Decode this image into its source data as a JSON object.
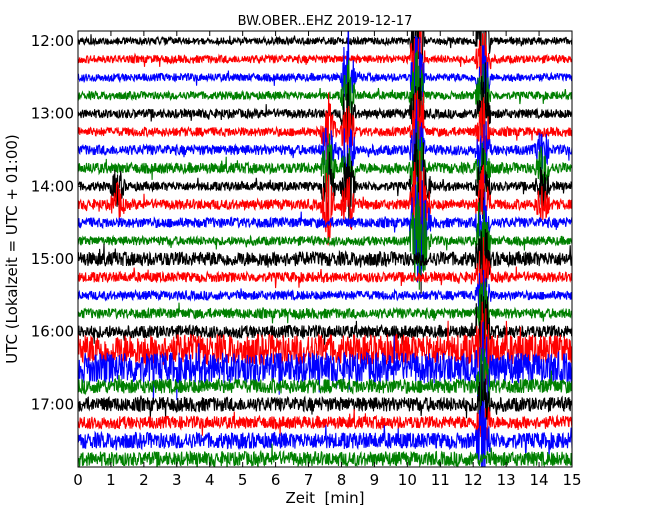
{
  "chart_data": {
    "type": "line",
    "title": "BW.OBER..EHZ 2019-12-17",
    "xlabel": "Zeit  [min]",
    "ylabel": "UTC (Lokalzeit = UTC + 01:00)",
    "xlim": [
      0,
      15
    ],
    "x_ticks": [
      "0",
      "1",
      "2",
      "3",
      "4",
      "5",
      "6",
      "7",
      "8",
      "9",
      "10",
      "11",
      "12",
      "13",
      "14",
      "15"
    ],
    "y_ticks": [
      "12:00",
      "13:00",
      "14:00",
      "15:00",
      "16:00",
      "17:00"
    ],
    "trace_colors": [
      "#000000",
      "#ff0000",
      "#0000ff",
      "#008000"
    ],
    "traces_per_hour": 4,
    "trace_minutes": 15,
    "traces": [
      {
        "start": "12:00",
        "color": "#000000",
        "amp": 0.2
      },
      {
        "start": "12:15",
        "color": "#ff0000",
        "amp": 0.22
      },
      {
        "start": "12:30",
        "color": "#0000ff",
        "amp": 0.22
      },
      {
        "start": "12:45",
        "color": "#008000",
        "amp": 0.22
      },
      {
        "start": "13:00",
        "color": "#000000",
        "amp": 0.25
      },
      {
        "start": "13:15",
        "color": "#ff0000",
        "amp": 0.25
      },
      {
        "start": "13:30",
        "color": "#0000ff",
        "amp": 0.28
      },
      {
        "start": "13:45",
        "color": "#008000",
        "amp": 0.3
      },
      {
        "start": "14:00",
        "color": "#000000",
        "amp": 0.25
      },
      {
        "start": "14:15",
        "color": "#ff0000",
        "amp": 0.28
      },
      {
        "start": "14:30",
        "color": "#0000ff",
        "amp": 0.28
      },
      {
        "start": "14:45",
        "color": "#008000",
        "amp": 0.25
      },
      {
        "start": "15:00",
        "color": "#000000",
        "amp": 0.4
      },
      {
        "start": "15:15",
        "color": "#ff0000",
        "amp": 0.28
      },
      {
        "start": "15:30",
        "color": "#0000ff",
        "amp": 0.25
      },
      {
        "start": "15:45",
        "color": "#008000",
        "amp": 0.28
      },
      {
        "start": "16:00",
        "color": "#000000",
        "amp": 0.35
      },
      {
        "start": "16:15",
        "color": "#ff0000",
        "amp": 0.85
      },
      {
        "start": "16:30",
        "color": "#0000ff",
        "amp": 0.85
      },
      {
        "start": "16:45",
        "color": "#008000",
        "amp": 0.4
      },
      {
        "start": "17:00",
        "color": "#000000",
        "amp": 0.4
      },
      {
        "start": "17:15",
        "color": "#ff0000",
        "amp": 0.35
      },
      {
        "start": "17:30",
        "color": "#0000ff",
        "amp": 0.45
      },
      {
        "start": "17:45",
        "color": "#008000",
        "amp": 0.4
      }
    ],
    "events": [
      {
        "minute": 10.3,
        "from_trace": 0,
        "to_trace": 11,
        "amp": 3.0
      },
      {
        "minute": 12.3,
        "from_trace": 0,
        "to_trace": 22,
        "amp": 2.2
      },
      {
        "minute": 7.6,
        "from_trace": 5,
        "to_trace": 9,
        "amp": 2.0
      },
      {
        "minute": 8.2,
        "from_trace": 2,
        "to_trace": 9,
        "amp": 2.0
      },
      {
        "minute": 10.5,
        "from_trace": 8,
        "to_trace": 11,
        "amp": 1.5
      },
      {
        "minute": 14.1,
        "from_trace": 6,
        "to_trace": 9,
        "amp": 1.2
      },
      {
        "minute": 1.2,
        "from_trace": 8,
        "to_trace": 9,
        "amp": 1.0
      }
    ]
  }
}
